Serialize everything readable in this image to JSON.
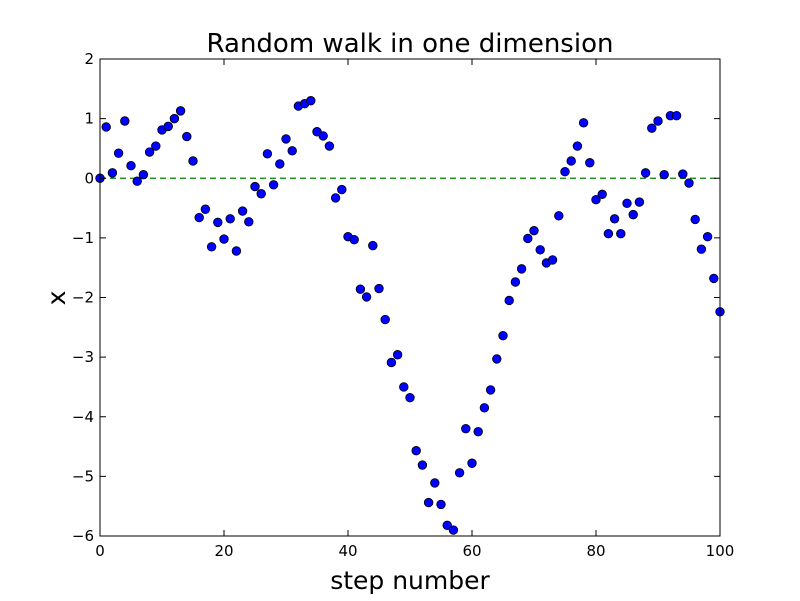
{
  "chart_data": {
    "type": "scatter",
    "title": "Random walk in one dimension",
    "xlabel": "step number",
    "ylabel": "x",
    "xlim": [
      0,
      100
    ],
    "ylim": [
      -6,
      2
    ],
    "xticks": [
      0,
      20,
      40,
      60,
      80,
      100
    ],
    "yticks": [
      2,
      1,
      0,
      -1,
      -2,
      -3,
      -4,
      -5,
      -6
    ],
    "ytick_labels": [
      "2",
      "1",
      "0",
      "−1",
      "−2",
      "−3",
      "−4",
      "−5",
      "−6"
    ],
    "grid": false,
    "reference_line": {
      "y": 0,
      "style": "dashed",
      "color": "#008000"
    },
    "marker_color": "#0000ff",
    "series": [
      {
        "x": [
          0,
          1,
          2,
          3,
          4,
          5,
          6,
          7,
          8,
          9,
          10,
          11,
          12,
          13,
          14,
          15,
          16,
          17,
          18,
          19,
          20,
          21,
          22,
          23,
          24,
          25,
          26,
          27,
          28,
          29,
          30,
          31,
          32,
          33,
          34,
          35,
          36,
          37,
          38,
          39,
          40,
          41,
          42,
          43,
          44,
          45,
          46,
          47,
          48,
          49,
          50,
          51,
          52,
          53,
          54,
          55,
          56,
          57,
          58,
          59,
          60,
          61,
          62,
          63,
          64,
          65,
          66,
          67,
          68,
          69,
          70,
          71,
          72,
          73,
          74,
          75,
          76,
          77,
          78,
          79,
          80,
          81,
          82,
          83,
          84,
          85,
          86,
          87,
          88,
          89,
          90,
          91,
          92,
          93,
          94,
          95,
          96,
          97,
          98,
          99,
          100
        ],
        "values": [
          0,
          0.86,
          0.09,
          0.42,
          0.96,
          0.21,
          -0.05,
          0.06,
          0.44,
          0.54,
          0.81,
          0.87,
          1.0,
          1.13,
          0.7,
          0.29,
          -0.66,
          -0.52,
          -1.15,
          -0.74,
          -1.02,
          -0.68,
          -1.22,
          -0.55,
          -0.73,
          -0.14,
          -0.26,
          0.41,
          -0.11,
          0.24,
          0.66,
          0.46,
          1.21,
          1.25,
          1.3,
          0.78,
          0.71,
          0.54,
          -0.33,
          -0.19,
          -0.98,
          -1.03,
          -1.86,
          -1.99,
          -1.13,
          -1.85,
          -2.37,
          -3.09,
          -2.96,
          -3.5,
          -3.68,
          -4.57,
          -4.81,
          -5.44,
          -5.11,
          -5.47,
          -5.82,
          -5.9,
          -4.94,
          -4.2,
          -4.78,
          -4.25,
          -3.85,
          -3.55,
          -3.03,
          -2.64,
          -2.05,
          -1.74,
          -1.52,
          -1.01,
          -0.88,
          -1.2,
          -1.42,
          -1.37,
          -0.63,
          0.11,
          0.29,
          0.54,
          0.93,
          0.26,
          -0.36,
          -0.27,
          -0.93,
          -0.68,
          -0.93,
          -0.42,
          -0.61,
          -0.4,
          0.09,
          0.84,
          0.96,
          0.06,
          1.05,
          1.05,
          0.07,
          -0.08,
          -0.69,
          -1.19,
          -0.98,
          -1.68,
          -2.24
        ]
      }
    ]
  }
}
